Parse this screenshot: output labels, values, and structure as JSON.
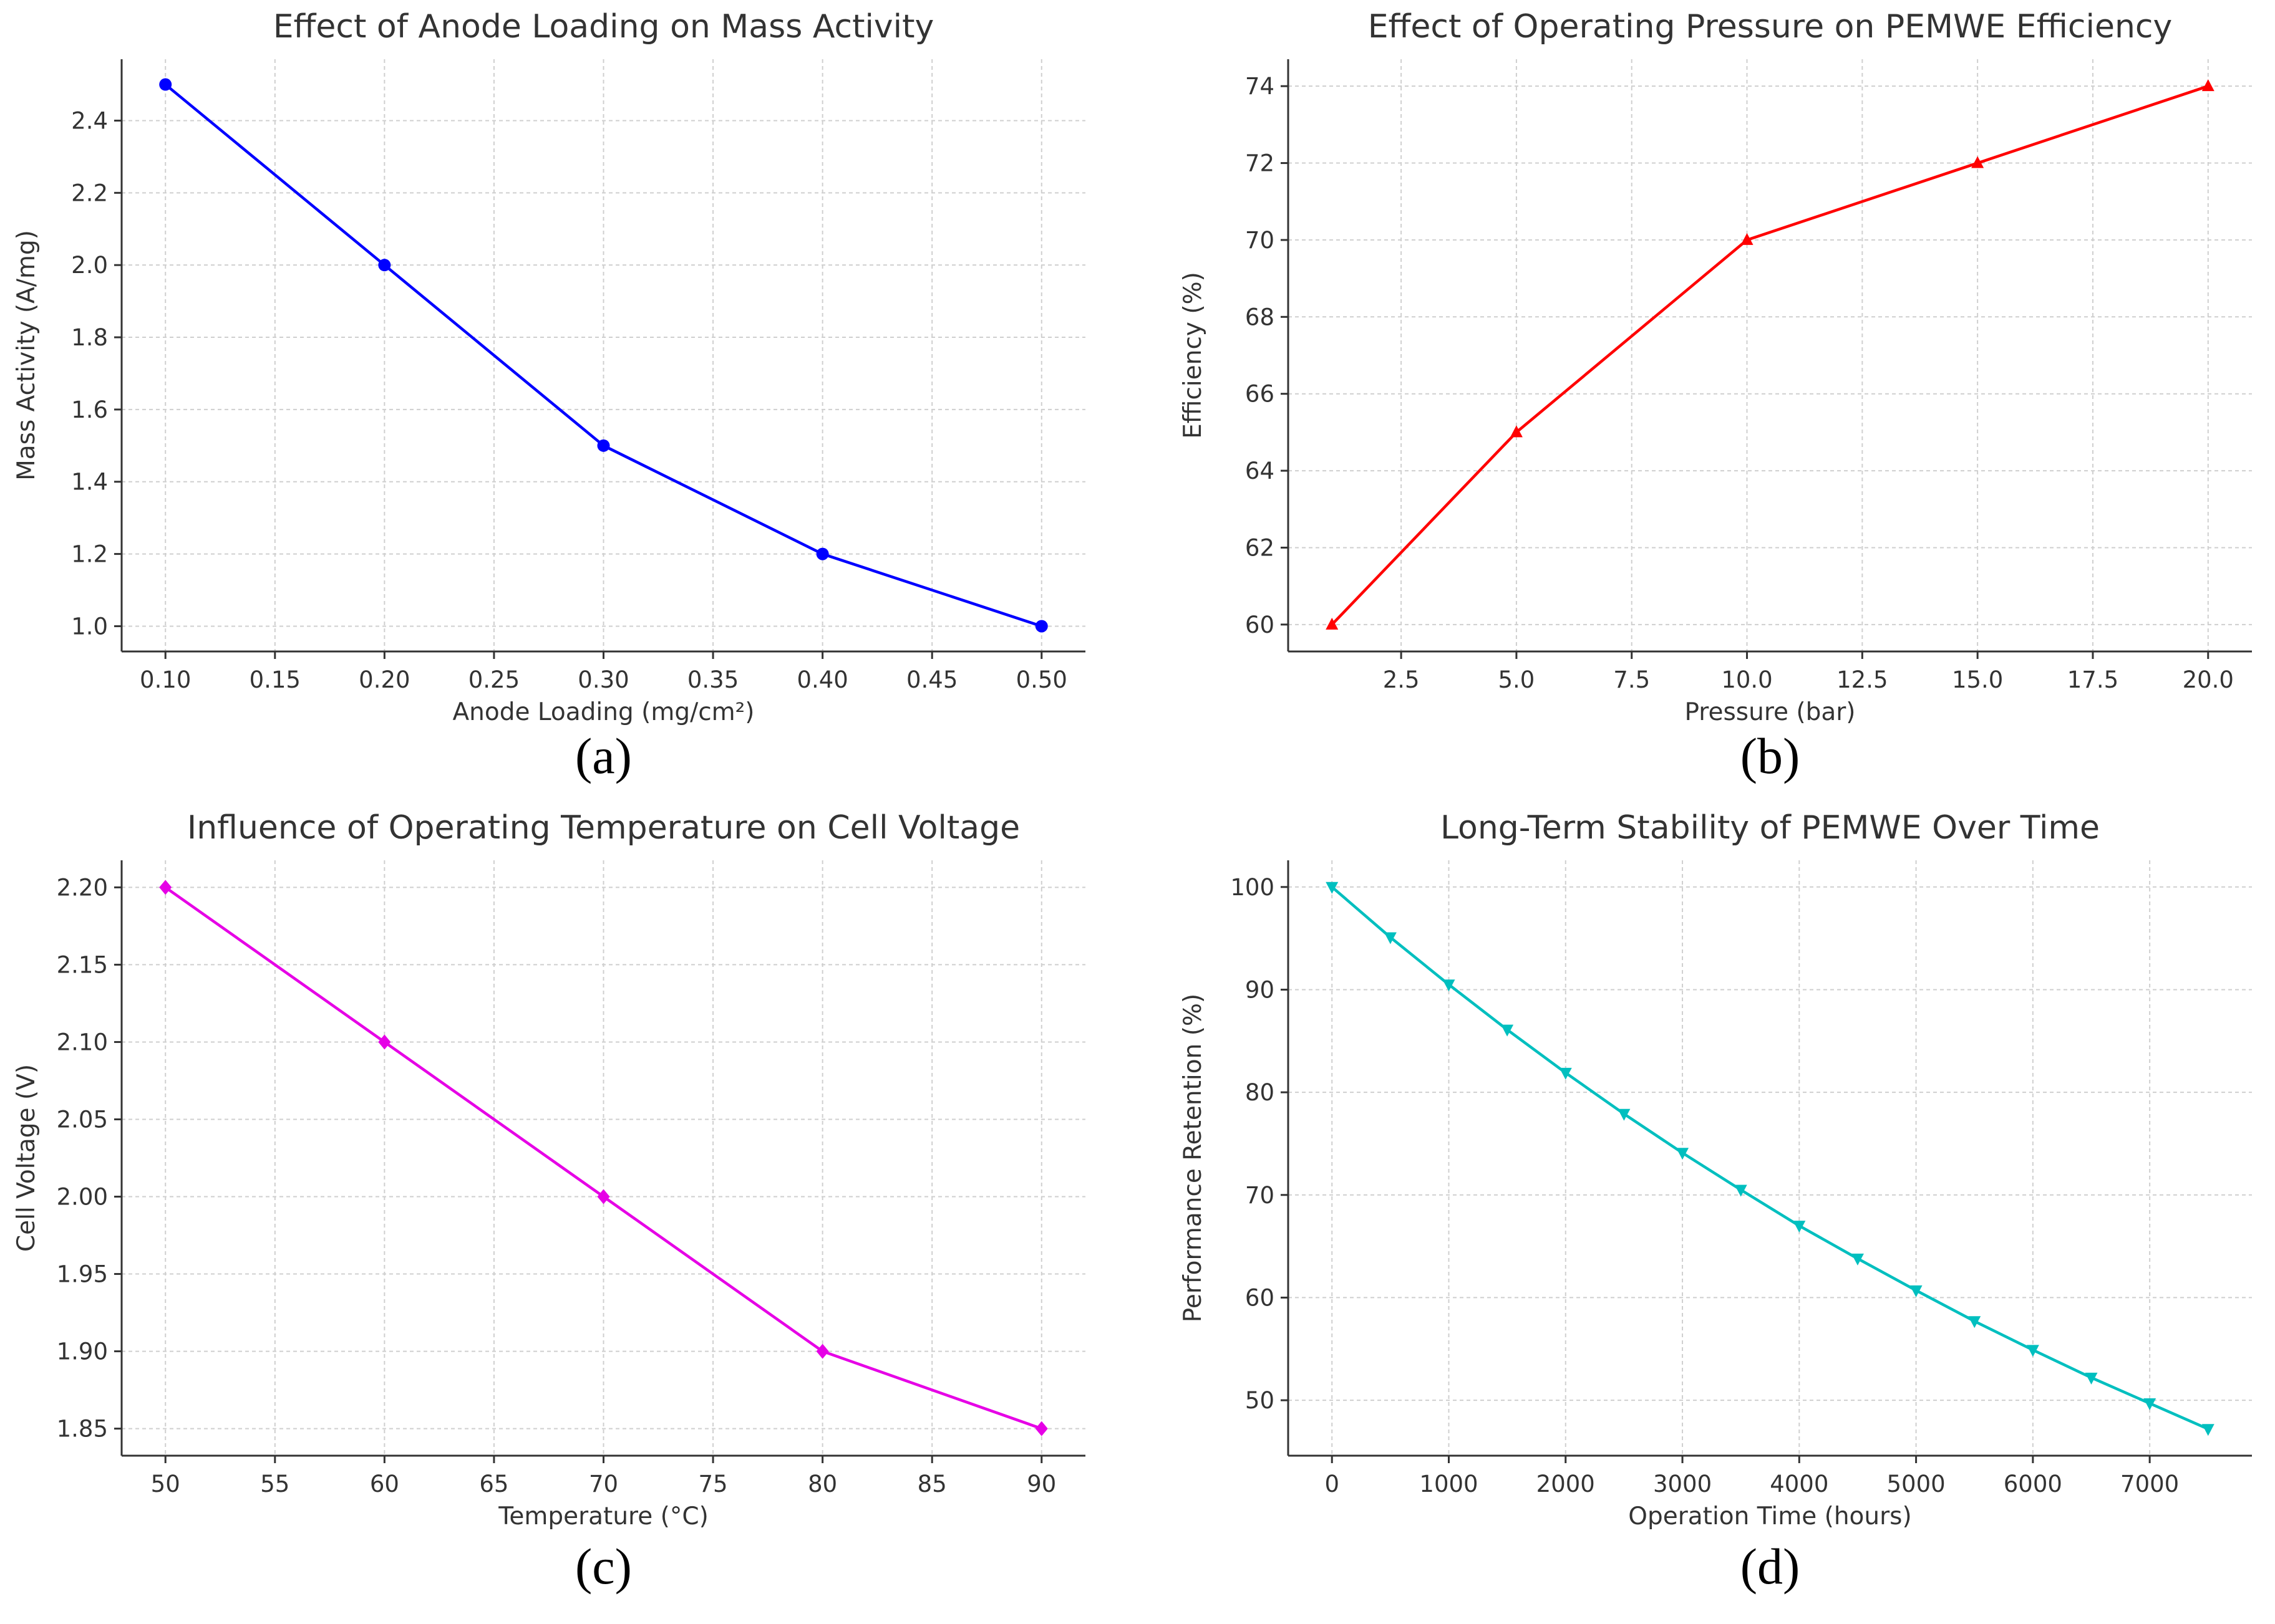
{
  "chart_data": [
    {
      "type": "line",
      "title": "Effect of Anode Loading on Mass Activity",
      "xlabel": "Anode Loading (mg/cm²)",
      "ylabel": "Mass Activity (A/mg)",
      "caption": "(a)",
      "color": "#0000ff",
      "marker": "circle",
      "grid": true,
      "xlim": [
        0.08,
        0.52
      ],
      "ylim": [
        0.93,
        2.57
      ],
      "xticks": [
        0.1,
        0.15,
        0.2,
        0.25,
        0.3,
        0.35,
        0.4,
        0.45,
        0.5
      ],
      "xtick_labels": [
        "0.10",
        "0.15",
        "0.20",
        "0.25",
        "0.30",
        "0.35",
        "0.40",
        "0.45",
        "0.50"
      ],
      "yticks": [
        1.0,
        1.2,
        1.4,
        1.6,
        1.8,
        2.0,
        2.2,
        2.4
      ],
      "ytick_labels": [
        "1.0",
        "1.2",
        "1.4",
        "1.6",
        "1.8",
        "2.0",
        "2.2",
        "2.4"
      ],
      "x": [
        0.1,
        0.2,
        0.3,
        0.4,
        0.5
      ],
      "y": [
        2.5,
        2.0,
        1.5,
        1.2,
        1.0
      ]
    },
    {
      "type": "line",
      "title": "Effect of Operating Pressure on PEMWE Efficiency",
      "xlabel": "Pressure (bar)",
      "ylabel": "Efficiency (%)",
      "caption": "(b)",
      "color": "#ff0000",
      "marker": "triangle-up",
      "grid": true,
      "xlim": [
        0.05,
        20.95
      ],
      "ylim": [
        59.3,
        74.7
      ],
      "xticks": [
        2.5,
        5.0,
        7.5,
        10.0,
        12.5,
        15.0,
        17.5,
        20.0
      ],
      "xtick_labels": [
        "2.5",
        "5.0",
        "7.5",
        "10.0",
        "12.5",
        "15.0",
        "17.5",
        "20.0"
      ],
      "yticks": [
        60,
        62,
        64,
        66,
        68,
        70,
        72,
        74
      ],
      "ytick_labels": [
        "60",
        "62",
        "64",
        "66",
        "68",
        "70",
        "72",
        "74"
      ],
      "x": [
        1,
        5,
        10,
        15,
        20
      ],
      "y": [
        60,
        65,
        70,
        72,
        74
      ]
    },
    {
      "type": "line",
      "title": "Influence of Operating Temperature on Cell Voltage",
      "xlabel": "Temperature (°C)",
      "ylabel": "Cell Voltage (V)",
      "caption": "(c)",
      "color": "#e600e6",
      "marker": "diamond",
      "grid": true,
      "xlim": [
        48,
        92
      ],
      "ylim": [
        1.8325,
        2.2175
      ],
      "xticks": [
        50,
        55,
        60,
        65,
        70,
        75,
        80,
        85,
        90
      ],
      "xtick_labels": [
        "50",
        "55",
        "60",
        "65",
        "70",
        "75",
        "80",
        "85",
        "90"
      ],
      "yticks": [
        1.85,
        1.9,
        1.95,
        2.0,
        2.05,
        2.1,
        2.15,
        2.2
      ],
      "ytick_labels": [
        "1.85",
        "1.90",
        "1.95",
        "2.00",
        "2.05",
        "2.10",
        "2.15",
        "2.20"
      ],
      "x": [
        50,
        60,
        70,
        80,
        90
      ],
      "y": [
        2.2,
        2.1,
        2.0,
        1.9,
        1.85
      ]
    },
    {
      "type": "line",
      "title": "Long-Term Stability of PEMWE Over Time",
      "xlabel": "Operation Time (hours)",
      "ylabel": "Performance Retention (%)",
      "caption": "(d)",
      "color": "#00bfbf",
      "marker": "triangle-down",
      "grid": true,
      "xlim": [
        -375,
        7875
      ],
      "ylim": [
        44.6,
        102.6
      ],
      "xticks": [
        0,
        1000,
        2000,
        3000,
        4000,
        5000,
        6000,
        7000
      ],
      "xtick_labels": [
        "0",
        "1000",
        "2000",
        "3000",
        "4000",
        "5000",
        "6000",
        "7000"
      ],
      "yticks": [
        50,
        60,
        70,
        80,
        90,
        100
      ],
      "ytick_labels": [
        "50",
        "60",
        "70",
        "80",
        "90",
        "100"
      ],
      "x": [
        0,
        500,
        1000,
        1500,
        2000,
        2500,
        3000,
        3500,
        4000,
        4500,
        5000,
        5500,
        6000,
        6500,
        7000,
        7500
      ],
      "y": [
        100,
        95.1,
        90.5,
        86.1,
        81.9,
        77.9,
        74.1,
        70.5,
        67.0,
        63.8,
        60.7,
        57.7,
        54.9,
        52.2,
        49.7,
        47.2
      ]
    }
  ]
}
